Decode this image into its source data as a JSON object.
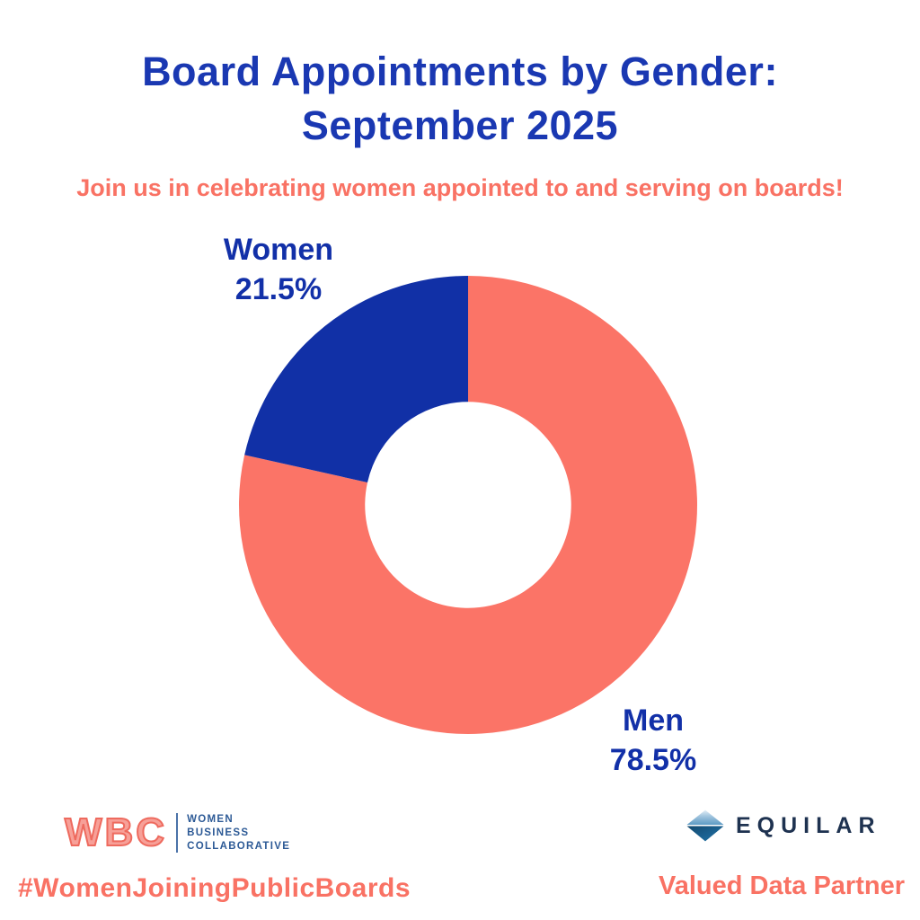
{
  "title": {
    "line1": "Board Appointments by Gender:",
    "line2": "September 2025"
  },
  "subtitle": "Join us in celebrating women appointed to and serving on boards!",
  "chart_data": {
    "type": "pie",
    "subtype": "donut",
    "title": "Board Appointments by Gender: September 2025",
    "start_angle": "12 o'clock",
    "direction": "clockwise",
    "inner_radius_ratio": 0.45,
    "legend_position": "labels beside slices",
    "categories": [
      "Men",
      "Women"
    ],
    "values": [
      78.5,
      21.5
    ],
    "slices": [
      {
        "label": "Men",
        "value": 78.5,
        "display": "78.5%",
        "color": "#fb7467"
      },
      {
        "label": "Women",
        "value": 21.5,
        "display": "21.5%",
        "color": "#1130a6"
      }
    ]
  },
  "footer": {
    "wbc": {
      "acronym": "WBC",
      "lines": [
        "WOMEN",
        "BUSINESS",
        "COLLABORATIVE"
      ]
    },
    "hashtag": "#WomenJoiningPublicBoards",
    "equilar": {
      "name": "EQUILAR",
      "tagline": "Valued Data Partner"
    }
  },
  "colors": {
    "background": "#ffffff",
    "title_blue": "#1a38b2",
    "chart_blue": "#1130a6",
    "chart_salmon": "#fb7467",
    "accent_salmon": "#f97264",
    "wbc_letter_salmon": "#ee6a5e",
    "wbc_navy": "#2d5a96",
    "equilar_navy": "#1e3250"
  }
}
